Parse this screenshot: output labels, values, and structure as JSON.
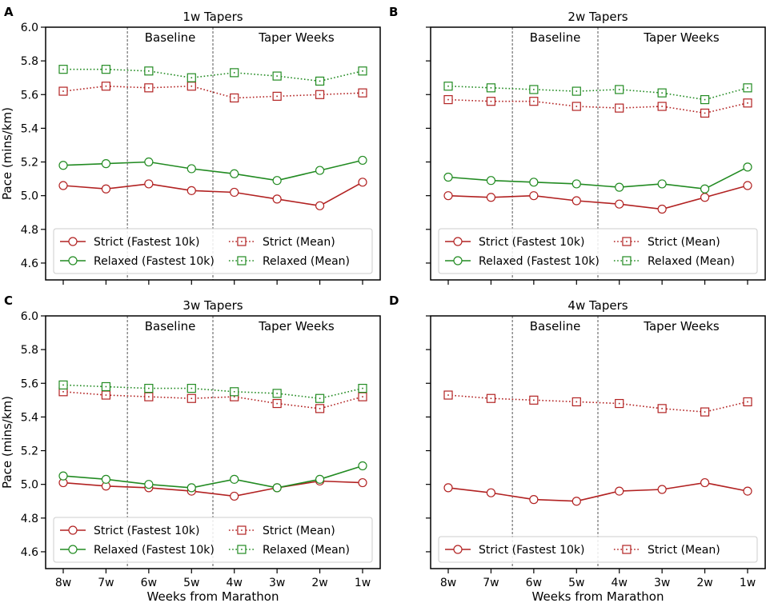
{
  "colors": {
    "strict": "#b22222",
    "relaxed": "#228b22",
    "divider": "#555555",
    "axis": "#000000"
  },
  "chart_data": [
    {
      "panel_label": "A",
      "type": "line",
      "title": "1w Tapers",
      "xlabel": "",
      "ylabel": "Pace (mins/km)",
      "categories": [
        "8w",
        "7w",
        "6w",
        "5w",
        "4w",
        "3w",
        "2w",
        "1w"
      ],
      "ylim": [
        4.5,
        6.0
      ],
      "yticks": [
        "4.6",
        "4.8",
        "5.0",
        "5.2",
        "5.4",
        "5.6",
        "5.8",
        "6.0"
      ],
      "show_xticklabels": false,
      "show_yticklabels": true,
      "region_labels": [
        "Baseline",
        "Taper Weeks"
      ],
      "series": [
        {
          "name": "Strict (Fastest 10k)",
          "color": "strict",
          "style": "solid",
          "marker": "circle",
          "values": [
            5.06,
            5.04,
            5.07,
            5.03,
            5.02,
            4.98,
            4.94,
            5.08
          ]
        },
        {
          "name": "Relaxed (Fastest 10k)",
          "color": "relaxed",
          "style": "solid",
          "marker": "circle",
          "values": [
            5.18,
            5.19,
            5.2,
            5.16,
            5.13,
            5.09,
            5.15,
            5.21
          ]
        },
        {
          "name": "Strict (Mean)",
          "color": "strict",
          "style": "dotted",
          "marker": "square",
          "values": [
            5.62,
            5.65,
            5.64,
            5.65,
            5.58,
            5.59,
            5.6,
            5.61
          ]
        },
        {
          "name": "Relaxed (Mean)",
          "color": "relaxed",
          "style": "dotted",
          "marker": "square",
          "values": [
            5.75,
            5.75,
            5.74,
            5.7,
            5.73,
            5.71,
            5.68,
            5.74
          ]
        }
      ],
      "legend": [
        "Strict (Fastest 10k)",
        "Strict (Mean)",
        "Relaxed (Fastest 10k)",
        "Relaxed (Mean)"
      ],
      "legend_location": "lower"
    },
    {
      "panel_label": "B",
      "type": "line",
      "title": "2w Tapers",
      "xlabel": "",
      "ylabel": "",
      "categories": [
        "8w",
        "7w",
        "6w",
        "5w",
        "4w",
        "3w",
        "2w",
        "1w"
      ],
      "ylim": [
        4.5,
        6.0
      ],
      "yticks": [
        "4.6",
        "4.8",
        "5.0",
        "5.2",
        "5.4",
        "5.6",
        "5.8",
        "6.0"
      ],
      "show_xticklabels": false,
      "show_yticklabels": false,
      "region_labels": [
        "Baseline",
        "Taper Weeks"
      ],
      "series": [
        {
          "name": "Strict (Fastest 10k)",
          "color": "strict",
          "style": "solid",
          "marker": "circle",
          "values": [
            5.0,
            4.99,
            5.0,
            4.97,
            4.95,
            4.92,
            4.99,
            5.06
          ]
        },
        {
          "name": "Relaxed (Fastest 10k)",
          "color": "relaxed",
          "style": "solid",
          "marker": "circle",
          "values": [
            5.11,
            5.09,
            5.08,
            5.07,
            5.05,
            5.07,
            5.04,
            5.17
          ]
        },
        {
          "name": "Strict (Mean)",
          "color": "strict",
          "style": "dotted",
          "marker": "square",
          "values": [
            5.57,
            5.56,
            5.56,
            5.53,
            5.52,
            5.53,
            5.49,
            5.55
          ]
        },
        {
          "name": "Relaxed (Mean)",
          "color": "relaxed",
          "style": "dotted",
          "marker": "square",
          "values": [
            5.65,
            5.64,
            5.63,
            5.62,
            5.63,
            5.61,
            5.57,
            5.64
          ]
        }
      ],
      "legend": [
        "Strict (Fastest 10k)",
        "Strict (Mean)",
        "Relaxed (Fastest 10k)",
        "Relaxed (Mean)"
      ],
      "legend_location": "lower"
    },
    {
      "panel_label": "C",
      "type": "line",
      "title": "3w Tapers",
      "xlabel": "Weeks from Marathon",
      "ylabel": "Pace (mins/km)",
      "categories": [
        "8w",
        "7w",
        "6w",
        "5w",
        "4w",
        "3w",
        "2w",
        "1w"
      ],
      "ylim": [
        4.5,
        6.0
      ],
      "yticks": [
        "4.6",
        "4.8",
        "5.0",
        "5.2",
        "5.4",
        "5.6",
        "5.8",
        "6.0"
      ],
      "show_xticklabels": true,
      "show_yticklabels": true,
      "region_labels": [
        "Baseline",
        "Taper Weeks"
      ],
      "series": [
        {
          "name": "Strict (Fastest 10k)",
          "color": "strict",
          "style": "solid",
          "marker": "circle",
          "values": [
            5.01,
            4.99,
            4.98,
            4.96,
            4.93,
            4.98,
            5.02,
            5.01
          ]
        },
        {
          "name": "Relaxed (Fastest 10k)",
          "color": "relaxed",
          "style": "solid",
          "marker": "circle",
          "values": [
            5.05,
            5.03,
            5.0,
            4.98,
            5.03,
            4.98,
            5.03,
            5.11
          ]
        },
        {
          "name": "Strict (Mean)",
          "color": "strict",
          "style": "dotted",
          "marker": "square",
          "values": [
            5.55,
            5.53,
            5.52,
            5.51,
            5.52,
            5.48,
            5.45,
            5.52
          ]
        },
        {
          "name": "Relaxed (Mean)",
          "color": "relaxed",
          "style": "dotted",
          "marker": "square",
          "values": [
            5.59,
            5.58,
            5.57,
            5.57,
            5.55,
            5.54,
            5.51,
            5.57
          ]
        }
      ],
      "legend": [
        "Strict (Fastest 10k)",
        "Strict (Mean)",
        "Relaxed (Fastest 10k)",
        "Relaxed (Mean)"
      ],
      "legend_location": "lower"
    },
    {
      "panel_label": "D",
      "type": "line",
      "title": "4w Tapers",
      "xlabel": "Weeks from Marathon",
      "ylabel": "",
      "categories": [
        "8w",
        "7w",
        "6w",
        "5w",
        "4w",
        "3w",
        "2w",
        "1w"
      ],
      "ylim": [
        4.5,
        6.0
      ],
      "yticks": [
        "4.6",
        "4.8",
        "5.0",
        "5.2",
        "5.4",
        "5.6",
        "5.8",
        "6.0"
      ],
      "show_xticklabels": true,
      "show_yticklabels": false,
      "region_labels": [
        "Baseline",
        "Taper Weeks"
      ],
      "series": [
        {
          "name": "Strict (Fastest 10k)",
          "color": "strict",
          "style": "solid",
          "marker": "circle",
          "values": [
            4.98,
            4.95,
            4.91,
            4.9,
            4.96,
            4.97,
            5.01,
            4.96
          ]
        },
        {
          "name": "Strict (Mean)",
          "color": "strict",
          "style": "dotted",
          "marker": "square",
          "values": [
            5.53,
            5.51,
            5.5,
            5.49,
            5.48,
            5.45,
            5.43,
            5.49
          ]
        }
      ],
      "legend": [
        "Strict (Fastest 10k)",
        "Strict (Mean)"
      ],
      "legend_location": "lower"
    }
  ]
}
